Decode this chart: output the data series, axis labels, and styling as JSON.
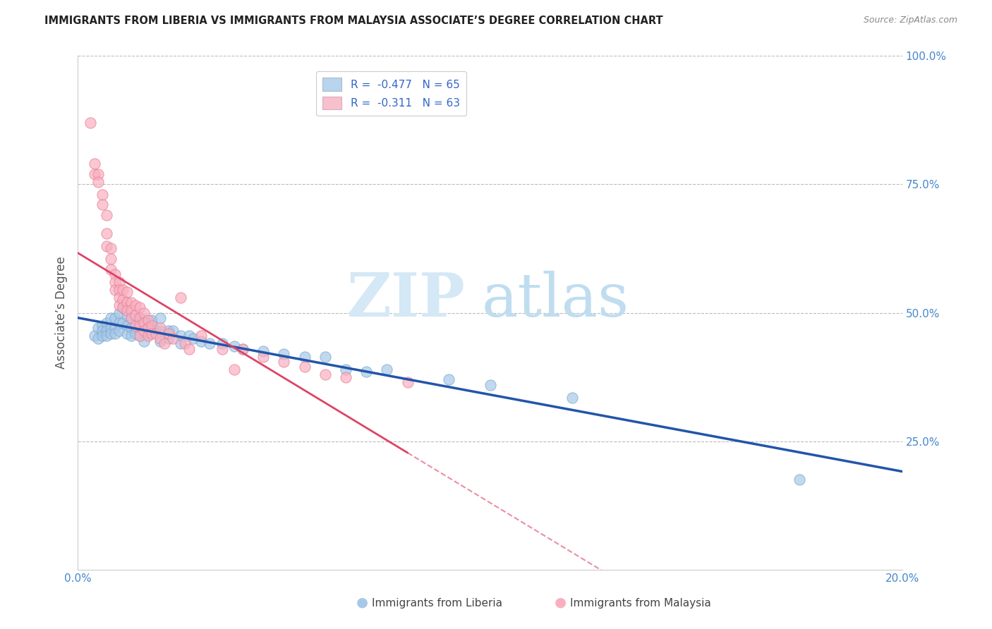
{
  "title": "IMMIGRANTS FROM LIBERIA VS IMMIGRANTS FROM MALAYSIA ASSOCIATE’S DEGREE CORRELATION CHART",
  "source": "Source: ZipAtlas.com",
  "ylabel": "Associate’s Degree",
  "x_min": 0.0,
  "x_max": 0.2,
  "y_min": 0.0,
  "y_max": 1.0,
  "watermark_zip": "ZIP",
  "watermark_atlas": "atlas",
  "liberia_color": "#a8c8e8",
  "liberia_edge_color": "#7aaad0",
  "malaysia_color": "#f8b0c0",
  "malaysia_edge_color": "#e88098",
  "liberia_trend_color": "#2255aa",
  "malaysia_trend_color": "#dd4466",
  "liberia_R": -0.477,
  "liberia_N": 65,
  "malaysia_R": -0.311,
  "malaysia_N": 63,
  "legend_liberia_color": "#b8d4ee",
  "legend_malaysia_color": "#f8c0cc",
  "legend_text_color": "#3366cc",
  "right_tick_color": "#4488cc",
  "bottom_tick_color": "#4488cc",
  "liberia_points": [
    [
      0.004,
      0.455
    ],
    [
      0.005,
      0.47
    ],
    [
      0.005,
      0.45
    ],
    [
      0.006,
      0.475
    ],
    [
      0.006,
      0.465
    ],
    [
      0.006,
      0.455
    ],
    [
      0.007,
      0.48
    ],
    [
      0.007,
      0.465
    ],
    [
      0.007,
      0.455
    ],
    [
      0.008,
      0.49
    ],
    [
      0.008,
      0.47
    ],
    [
      0.008,
      0.46
    ],
    [
      0.009,
      0.49
    ],
    [
      0.009,
      0.47
    ],
    [
      0.009,
      0.46
    ],
    [
      0.01,
      0.5
    ],
    [
      0.01,
      0.48
    ],
    [
      0.01,
      0.465
    ],
    [
      0.011,
      0.51
    ],
    [
      0.011,
      0.48
    ],
    [
      0.012,
      0.495
    ],
    [
      0.012,
      0.475
    ],
    [
      0.012,
      0.46
    ],
    [
      0.013,
      0.49
    ],
    [
      0.013,
      0.47
    ],
    [
      0.013,
      0.455
    ],
    [
      0.014,
      0.48
    ],
    [
      0.014,
      0.46
    ],
    [
      0.015,
      0.49
    ],
    [
      0.015,
      0.47
    ],
    [
      0.015,
      0.455
    ],
    [
      0.016,
      0.485
    ],
    [
      0.016,
      0.465
    ],
    [
      0.016,
      0.445
    ],
    [
      0.017,
      0.48
    ],
    [
      0.017,
      0.46
    ],
    [
      0.018,
      0.485
    ],
    [
      0.018,
      0.465
    ],
    [
      0.019,
      0.465
    ],
    [
      0.02,
      0.49
    ],
    [
      0.02,
      0.465
    ],
    [
      0.02,
      0.445
    ],
    [
      0.022,
      0.465
    ],
    [
      0.022,
      0.45
    ],
    [
      0.023,
      0.465
    ],
    [
      0.025,
      0.455
    ],
    [
      0.025,
      0.44
    ],
    [
      0.027,
      0.455
    ],
    [
      0.028,
      0.45
    ],
    [
      0.03,
      0.445
    ],
    [
      0.032,
      0.44
    ],
    [
      0.035,
      0.44
    ],
    [
      0.038,
      0.435
    ],
    [
      0.04,
      0.43
    ],
    [
      0.045,
      0.425
    ],
    [
      0.05,
      0.42
    ],
    [
      0.055,
      0.415
    ],
    [
      0.06,
      0.415
    ],
    [
      0.065,
      0.39
    ],
    [
      0.07,
      0.385
    ],
    [
      0.075,
      0.39
    ],
    [
      0.09,
      0.37
    ],
    [
      0.1,
      0.36
    ],
    [
      0.12,
      0.335
    ],
    [
      0.175,
      0.175
    ]
  ],
  "malaysia_points": [
    [
      0.003,
      0.87
    ],
    [
      0.004,
      0.79
    ],
    [
      0.004,
      0.77
    ],
    [
      0.005,
      0.77
    ],
    [
      0.005,
      0.755
    ],
    [
      0.006,
      0.73
    ],
    [
      0.006,
      0.71
    ],
    [
      0.007,
      0.69
    ],
    [
      0.007,
      0.655
    ],
    [
      0.007,
      0.63
    ],
    [
      0.008,
      0.625
    ],
    [
      0.008,
      0.605
    ],
    [
      0.008,
      0.585
    ],
    [
      0.009,
      0.575
    ],
    [
      0.009,
      0.56
    ],
    [
      0.009,
      0.545
    ],
    [
      0.01,
      0.56
    ],
    [
      0.01,
      0.545
    ],
    [
      0.01,
      0.53
    ],
    [
      0.01,
      0.515
    ],
    [
      0.011,
      0.545
    ],
    [
      0.011,
      0.525
    ],
    [
      0.011,
      0.51
    ],
    [
      0.012,
      0.54
    ],
    [
      0.012,
      0.52
    ],
    [
      0.012,
      0.505
    ],
    [
      0.013,
      0.52
    ],
    [
      0.013,
      0.505
    ],
    [
      0.013,
      0.49
    ],
    [
      0.014,
      0.515
    ],
    [
      0.014,
      0.495
    ],
    [
      0.014,
      0.475
    ],
    [
      0.015,
      0.51
    ],
    [
      0.015,
      0.49
    ],
    [
      0.015,
      0.475
    ],
    [
      0.015,
      0.455
    ],
    [
      0.016,
      0.5
    ],
    [
      0.016,
      0.48
    ],
    [
      0.016,
      0.465
    ],
    [
      0.017,
      0.485
    ],
    [
      0.017,
      0.47
    ],
    [
      0.017,
      0.455
    ],
    [
      0.018,
      0.475
    ],
    [
      0.018,
      0.46
    ],
    [
      0.019,
      0.46
    ],
    [
      0.02,
      0.47
    ],
    [
      0.02,
      0.45
    ],
    [
      0.021,
      0.44
    ],
    [
      0.022,
      0.46
    ],
    [
      0.023,
      0.45
    ],
    [
      0.025,
      0.53
    ],
    [
      0.026,
      0.44
    ],
    [
      0.027,
      0.43
    ],
    [
      0.03,
      0.455
    ],
    [
      0.035,
      0.43
    ],
    [
      0.038,
      0.39
    ],
    [
      0.04,
      0.43
    ],
    [
      0.045,
      0.415
    ],
    [
      0.05,
      0.405
    ],
    [
      0.055,
      0.395
    ],
    [
      0.06,
      0.38
    ],
    [
      0.065,
      0.375
    ],
    [
      0.08,
      0.365
    ]
  ]
}
